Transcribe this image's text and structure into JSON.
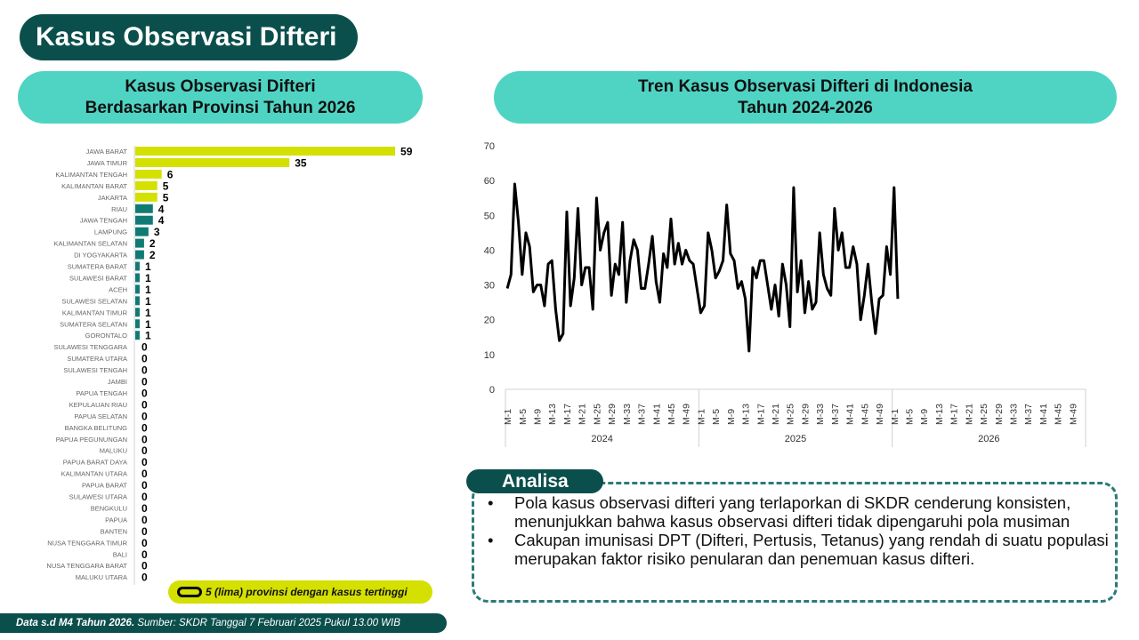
{
  "page_title": "Kasus Observasi Difteri",
  "left_panel": {
    "title_line1": "Kasus Observasi Difteri",
    "title_line2": "Berdasarkan Provinsi Tahun 2026",
    "legend_text": "5 (lima) provinsi dengan kasus tertinggi"
  },
  "right_panel": {
    "title_line1": "Tren Kasus Observasi Difteri di Indonesia",
    "title_line2": "Tahun 2024-2026"
  },
  "analysis": {
    "label": "Analisa",
    "points": [
      "Pola kasus observasi difteri yang terlaporkan di SKDR cenderung konsisten, menunjukkan bahwa kasus observasi difteri tidak dipengaruhi pola musiman",
      "Cakupan imunisasi DPT (Difteri, Pertusis, Tetanus) yang rendah di suatu populasi merupakan faktor risiko penularan dan penemuan kasus difteri."
    ]
  },
  "footer": {
    "bold": "Data s.d M4 Tahun 2026.",
    "rest": " Sumber: SKDR Tanggal 7 Februari 2025 Pukul 13.00 WIB"
  },
  "colors": {
    "dark_teal": "#0b4f4c",
    "header_teal": "#4fd4c4",
    "highlight": "#d4e000",
    "bar": "#0f7b74",
    "line": "#000000"
  },
  "chart_data": [
    {
      "type": "bar",
      "orientation": "horizontal",
      "highlight_top_n": 5,
      "categories": [
        "JAWA BARAT",
        "JAWA TIMUR",
        "KALIMANTAN TENGAH",
        "KALIMANTAN BARAT",
        "JAKARTA",
        "RIAU",
        "JAWA TENGAH",
        "LAMPUNG",
        "KALIMANTAN SELATAN",
        "DI YOGYAKARTA",
        "SUMATERA BARAT",
        "SULAWESI BARAT",
        "ACEH",
        "SULAWESI SELATAN",
        "KALIMANTAN TIMUR",
        "SUMATERA SELATAN",
        "GORONTALO",
        "SULAWESI TENGGARA",
        "SUMATERA UTARA",
        "SULAWESI TENGAH",
        "JAMBI",
        "PAPUA TENGAH",
        "KEPULAUAN RIAU",
        "PAPUA SELATAN",
        "BANGKA BELITUNG",
        "PAPUA PEGUNUNGAN",
        "MALUKU",
        "PAPUA BARAT DAYA",
        "KALIMANTAN UTARA",
        "PAPUA BARAT",
        "SULAWESI UTARA",
        "BENGKULU",
        "PAPUA",
        "BANTEN",
        "NUSA TENGGARA TIMUR",
        "BALI",
        "NUSA TENGGARA BARAT",
        "MALUKU UTARA"
      ],
      "values": [
        59,
        35,
        6,
        5,
        5,
        4,
        4,
        3,
        2,
        2,
        1,
        1,
        1,
        1,
        1,
        1,
        1,
        0,
        0,
        0,
        0,
        0,
        0,
        0,
        0,
        0,
        0,
        0,
        0,
        0,
        0,
        0,
        0,
        0,
        0,
        0,
        0,
        0
      ]
    },
    {
      "type": "line",
      "ylim": [
        0,
        70
      ],
      "yticks": [
        0,
        10,
        20,
        30,
        40,
        50,
        60,
        70
      ],
      "xtick_labels": [
        "M-1",
        "M-5",
        "M-9",
        "M-13",
        "M-17",
        "M-21",
        "M-25",
        "M-29",
        "M-33",
        "M-37",
        "M-41",
        "M-45",
        "M-49"
      ],
      "weeks_per_year": 52,
      "series": [
        {
          "year": "2024",
          "values": [
            29,
            33,
            59,
            48,
            33,
            45,
            41,
            28,
            30,
            30,
            24,
            36,
            37,
            23,
            14,
            16,
            51,
            24,
            32,
            52,
            30,
            35,
            35,
            23,
            55,
            40,
            45,
            48,
            27,
            36,
            33,
            48,
            25,
            37,
            43,
            40,
            29,
            29,
            36,
            44,
            31,
            25,
            39,
            35,
            49,
            36,
            42,
            36,
            40,
            37,
            36,
            29
          ]
        },
        {
          "year": "2025",
          "values": [
            22,
            24,
            45,
            40,
            32,
            34,
            37,
            53,
            39,
            37,
            29,
            31,
            26,
            11,
            35,
            32,
            37,
            37,
            30,
            23,
            30,
            21,
            36,
            30,
            18,
            58,
            28,
            37,
            22,
            31,
            23,
            25,
            45,
            33,
            29,
            27,
            52,
            40,
            45,
            35,
            35,
            41,
            36,
            20,
            27,
            36,
            25,
            16,
            26,
            27,
            41,
            33
          ]
        },
        {
          "year": "2026",
          "values": [
            58,
            26
          ]
        }
      ]
    }
  ]
}
